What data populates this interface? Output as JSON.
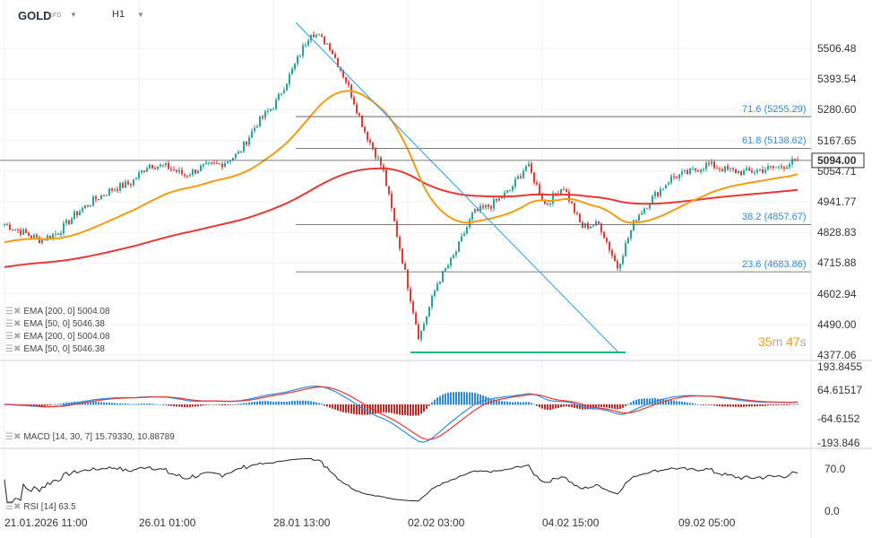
{
  "header": {
    "symbol": "GOLD",
    "symbol_type": "CFD",
    "timeframe": "H1"
  },
  "legend_main": [
    {
      "label": "EMA [200,  0] 5004.08"
    },
    {
      "label": "EMA [50,  0] 5046.38"
    },
    {
      "label": "EMA [200,  0] 5004.08"
    },
    {
      "label": "EMA [50,  0] 5046.38"
    }
  ],
  "legend_macd": "MACD [14, 30, 7] 15.79330, 10.88789",
  "legend_rsi": "RSI [14] 63.5",
  "countdown": {
    "minutes": "35",
    "m": "m",
    "seconds": "47",
    "s": "s"
  },
  "current_price": "5094.00",
  "colors": {
    "up": "#26a69a",
    "down": "#e53935",
    "ema50": "#f39c12",
    "ema200": "#e53935",
    "fib": "#2d8ce0",
    "trend": "#2d9cf0",
    "support": "#1abc7c",
    "macd": "#2d8ce0",
    "signal": "#e53935"
  },
  "chart_data": {
    "type": "candlestick",
    "x_ticks": [
      "21.01.2026  11:00",
      "26.01  01:00",
      "28.01  13:00",
      "02.02  03:00",
      "04.02  15:00",
      "09.02  05:00"
    ],
    "y_ticks": [
      "5506.48",
      "5393.54",
      "5280.60",
      "5167.65",
      "5054.71",
      "4941.77",
      "4828.83",
      "4715.88",
      "4602.94",
      "4490.00",
      "4377.06"
    ],
    "ylim": [
      4377.06,
      5506.48
    ],
    "closes": [
      4859,
      4830,
      4800,
      4830,
      4900,
      4950,
      4990,
      5010,
      5080,
      5070,
      5040,
      5070,
      5080,
      5120,
      5230,
      5300,
      5430,
      5570,
      5520,
      5380,
      5200,
      5060,
      4750,
      4440,
      4640,
      4750,
      4900,
      4930,
      4980,
      5080,
      4930,
      5000,
      4850,
      4860,
      4700,
      4880,
      4960,
      5030,
      5050,
      5080,
      5060,
      5050,
      5060,
      5070,
      5094
    ],
    "fib_levels": [
      {
        "label": "71.6 (5255.29)",
        "value": 5255.29
      },
      {
        "label": "61.8 (5138.62)",
        "value": 5138.62
      },
      {
        "label": "38.2 (4857.67)",
        "value": 4857.67
      },
      {
        "label": "23.6 (4683.86)",
        "value": 4683.86
      }
    ],
    "macd_ticks": [
      "193.8455",
      "64.61517",
      "-64.6152",
      "-193.846"
    ],
    "rsi_ticks": [
      "70.0",
      "0.0"
    ]
  }
}
